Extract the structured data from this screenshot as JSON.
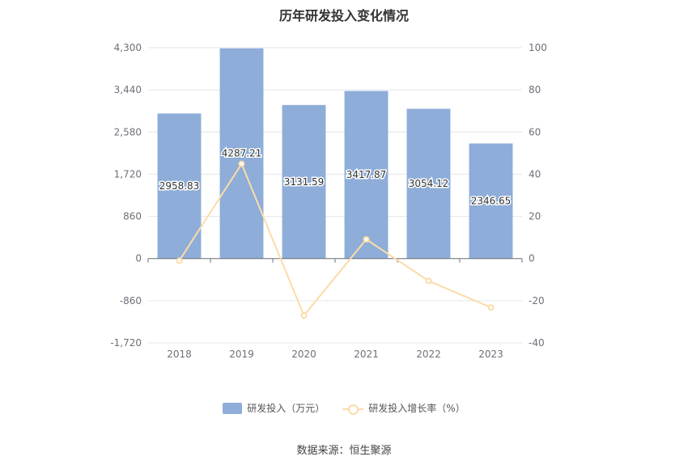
{
  "chart_data": {
    "type": "bar",
    "title": "历年研发投入变化情况",
    "categories": [
      "2018",
      "2019",
      "2020",
      "2021",
      "2022",
      "2023"
    ],
    "series": [
      {
        "name": "研发投入（万元）",
        "type": "bar",
        "axis": "left",
        "values": [
          2958.83,
          4287.21,
          3131.59,
          3417.87,
          3054.12,
          2346.65
        ],
        "labels": [
          "2958.83",
          "4287.21",
          "3131.59",
          "3417.87",
          "3054.12",
          "2346.65"
        ]
      },
      {
        "name": "研发投入增长率（%）",
        "type": "line",
        "axis": "right",
        "values": [
          -1,
          44.9,
          -27,
          9.1,
          -10.6,
          -23.2
        ]
      }
    ],
    "y_left": {
      "ticks": [
        -1720,
        -860,
        0,
        860,
        1720,
        2580,
        3440,
        4300
      ],
      "tick_labels": [
        "-1,720",
        "-860",
        "0",
        "860",
        "1,720",
        "2,580",
        "3,440",
        "4,300"
      ],
      "ylim": [
        -1720,
        4300
      ]
    },
    "y_right": {
      "ticks": [
        -40,
        -20,
        0,
        20,
        40,
        60,
        80,
        100
      ],
      "tick_labels": [
        "-40",
        "-20",
        "0",
        "20",
        "40",
        "60",
        "80",
        "100"
      ],
      "ylim": [
        -40,
        100
      ]
    },
    "grid": true,
    "legend_position": "bottom",
    "colors": {
      "bar": "#8eadd9",
      "line": "#fbdca8"
    }
  },
  "source_text": "数据来源：恒生聚源"
}
